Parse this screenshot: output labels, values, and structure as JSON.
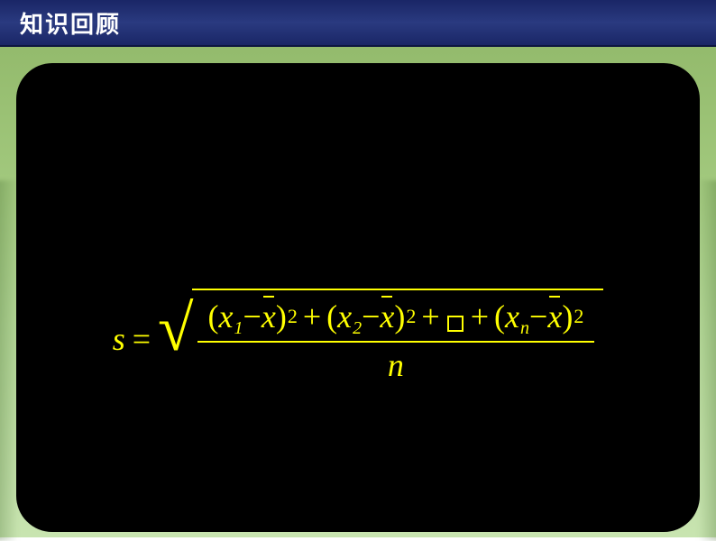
{
  "header": {
    "title": "知识回顾",
    "title_color": "#ffffff",
    "bar_gradient": [
      "#1a2666",
      "#2a3a80",
      "#1a2666"
    ],
    "fontsize": 26
  },
  "background": {
    "gradient": [
      "#8fb667",
      "#9fc67a",
      "#b3d696",
      "#c8e4b0"
    ]
  },
  "panel": {
    "background_color": "#000000",
    "border_radius": 40
  },
  "formula": {
    "type": "equation",
    "color": "#ffff00",
    "fontsize": 36,
    "font_family": "Times New Roman",
    "lhs_var": "s",
    "equals": "=",
    "denominator": "n",
    "variable": "x",
    "mean_symbol": "x",
    "minus": "−",
    "plus": "+",
    "open_paren": "(",
    "close_paren": ")",
    "exponent": "2",
    "subscripts": {
      "first": "1",
      "second": "2",
      "last": "n"
    },
    "ellipsis_placeholder": true
  }
}
